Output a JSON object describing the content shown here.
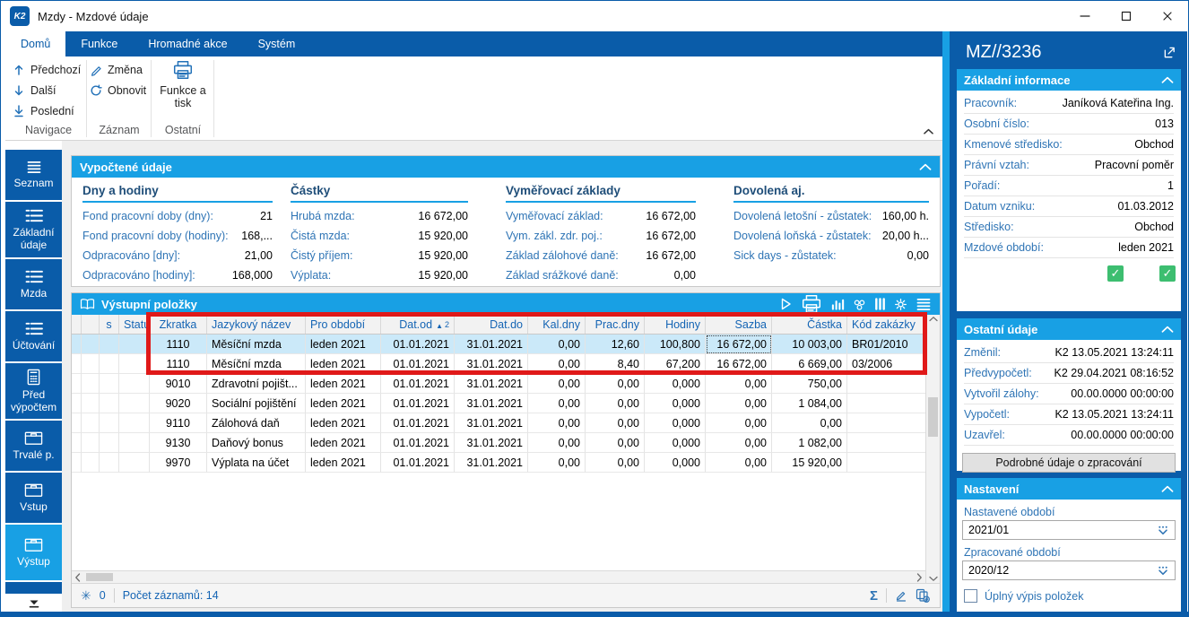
{
  "colors": {
    "dark_blue": "#0A5CA9",
    "bright_blue": "#18A0E4",
    "selection_blue": "#CBE9F9",
    "annotation_red": "#E01919",
    "check_green": "#3DBE70",
    "label_blue": "#2E74B5",
    "heading_navy": "#1F4E79",
    "header_text_blue": "#1464B4"
  },
  "window": {
    "title": "Mzdy - Mzdové údaje",
    "logo_text": "K2",
    "control_icons": [
      "minimize-icon",
      "maximize-icon",
      "close-icon"
    ]
  },
  "ribbon": {
    "tabs": [
      {
        "label": "Domů",
        "active": true
      },
      {
        "label": "Funkce",
        "active": false
      },
      {
        "label": "Hromadné akce",
        "active": false
      },
      {
        "label": "Systém",
        "active": false
      }
    ],
    "groups": [
      {
        "label": "Navigace",
        "buttons": [
          {
            "label": "Předchozí",
            "icon": "arrow-up-icon"
          },
          {
            "label": "Další",
            "icon": "arrow-down-icon"
          },
          {
            "label": "Poslední",
            "icon": "arrow-down-last-icon"
          }
        ]
      },
      {
        "label": "Záznam",
        "buttons": [
          {
            "label": "Změna",
            "icon": "pencil-icon"
          },
          {
            "label": "Obnovit",
            "icon": "refresh-icon"
          }
        ]
      },
      {
        "label": "Ostatní",
        "buttons": [
          {
            "label": "Funkce a tisk",
            "icon": "printer-icon",
            "large": true
          }
        ]
      }
    ]
  },
  "sidebar": {
    "items": [
      {
        "label": "Seznam",
        "icon": "menu-icon",
        "active": false
      },
      {
        "label": "Základní údaje",
        "icon": "list-icon",
        "active": false
      },
      {
        "label": "Mzda",
        "icon": "list-icon",
        "active": false
      },
      {
        "label": "Účtování",
        "icon": "list-icon",
        "active": false
      },
      {
        "label": "Před výpočtem",
        "icon": "calculator-icon",
        "active": false
      },
      {
        "label": "Trvalé p.",
        "icon": "box-icon",
        "active": false
      },
      {
        "label": "Vstup",
        "icon": "box-icon",
        "active": false
      },
      {
        "label": "Výstup",
        "icon": "box-icon",
        "active": true
      }
    ]
  },
  "computed_panel": {
    "title": "Vypočtené údaje",
    "groups": [
      {
        "heading": "Dny a hodiny",
        "rows": [
          {
            "label": "Fond pracovní doby (dny):",
            "value": "21"
          },
          {
            "label": "Fond pracovní doby (hodiny):",
            "value": "168,..."
          },
          {
            "label": "Odpracováno [dny]:",
            "value": "21,00"
          },
          {
            "label": "Odpracováno [hodiny]:",
            "value": "168,000"
          }
        ]
      },
      {
        "heading": "Částky",
        "rows": [
          {
            "label": "Hrubá mzda:",
            "value": "16 672,00"
          },
          {
            "label": "Čistá mzda:",
            "value": "15 920,00"
          },
          {
            "label": "Čistý příjem:",
            "value": "15 920,00"
          },
          {
            "label": "Výplata:",
            "value": "15 920,00"
          }
        ]
      },
      {
        "heading": "Vyměřovací základy",
        "rows": [
          {
            "label": "Vyměřovací základ:",
            "value": "16 672,00"
          },
          {
            "label": "Vym. zákl. zdr. poj.:",
            "value": "16 672,00"
          },
          {
            "label": "Základ zálohové daně:",
            "value": "16 672,00"
          },
          {
            "label": "Základ srážkové daně:",
            "value": "0,00"
          }
        ]
      },
      {
        "heading": "Dovolená aj.",
        "rows": [
          {
            "label": "Dovolená letošní - zůstatek:",
            "value": "160,00 h."
          },
          {
            "label": "Dovolená loňská - zůstatek:",
            "value": "20,00 h..."
          },
          {
            "label": "Sick days - zůstatek:",
            "value": "0,00"
          }
        ]
      }
    ]
  },
  "items_panel": {
    "title": "Výstupní položky",
    "title_icon": "book-icon",
    "toolbar_icons": [
      "play-icon",
      "printer-icon",
      "bar-chart-icon",
      "relations-icon",
      "columns-icon",
      "gear-icon",
      "menu-icon"
    ],
    "columns": [
      "",
      "",
      "s",
      "Status",
      "Zkratka",
      "Jazykový název",
      "Pro období",
      "Dat.od",
      "Dat.do",
      "Kal.dny",
      "Prac.dny",
      "Hodiny",
      "Sazba",
      "Částka",
      "Kód zakázky"
    ],
    "sort": {
      "column": "Dat.od",
      "direction": "asc",
      "order": "2"
    },
    "rows": [
      {
        "selected": true,
        "focus_col": "Sazba",
        "cells": [
          "1110",
          "Měsíční mzda",
          "leden 2021",
          "01.01.2021",
          "31.01.2021",
          "0,00",
          "12,60",
          "100,800",
          "16 672,00",
          "10 003,00",
          "BR01/2010"
        ]
      },
      {
        "selected": false,
        "cells": [
          "1110",
          "Měsíční mzda",
          "leden 2021",
          "01.01.2021",
          "31.01.2021",
          "0,00",
          "8,40",
          "67,200",
          "16 672,00",
          "6 669,00",
          "03/2006"
        ]
      },
      {
        "selected": false,
        "cells": [
          "9010",
          "Zdravotní pojišt...",
          "leden 2021",
          "01.01.2021",
          "31.01.2021",
          "0,00",
          "0,00",
          "0,000",
          "0,00",
          "750,00",
          ""
        ]
      },
      {
        "selected": false,
        "cells": [
          "9020",
          "Sociální pojištění",
          "leden 2021",
          "01.01.2021",
          "31.01.2021",
          "0,00",
          "0,00",
          "0,000",
          "0,00",
          "1 084,00",
          ""
        ]
      },
      {
        "selected": false,
        "cells": [
          "9110",
          "Zálohová daň",
          "leden 2021",
          "01.01.2021",
          "31.01.2021",
          "0,00",
          "0,00",
          "0,000",
          "0,00",
          "0,00",
          ""
        ]
      },
      {
        "selected": false,
        "cells": [
          "9130",
          "Daňový bonus",
          "leden 2021",
          "01.01.2021",
          "31.01.2021",
          "0,00",
          "0,00",
          "0,000",
          "0,00",
          "1 082,00",
          ""
        ]
      },
      {
        "selected": false,
        "cells": [
          "9970",
          "Výplata na účet",
          "leden 2021",
          "01.01.2021",
          "31.01.2021",
          "0,00",
          "0,00",
          "0,000",
          "0,00",
          "15 920,00",
          ""
        ]
      }
    ],
    "status_bar": {
      "filter_icon": "asterisk-icon",
      "filter_count": "0",
      "records_text": "Počet záznamů: 14",
      "icons": [
        "sum-icon",
        "edit-icon",
        "add-copy-icon"
      ]
    }
  },
  "right_panel": {
    "record_id": "MZ//3236",
    "open_icon": "open-external-icon",
    "sections": [
      {
        "title": "Základní informace",
        "rows": [
          {
            "label": "Pracovník:",
            "value": "Janíková Kateřina Ing."
          },
          {
            "label": "Osobní číslo:",
            "value": "013"
          },
          {
            "label": "Kmenové středisko:",
            "value": "Obchod"
          },
          {
            "label": "Právní vztah:",
            "value": "Pracovní poměr"
          },
          {
            "label": "Pořadí:",
            "value": "1"
          },
          {
            "label": "Datum vzniku:",
            "value": "01.03.2012"
          },
          {
            "label": "Středisko:",
            "value": "Obchod"
          },
          {
            "label": "Mzdové období:",
            "value": "leden 2021"
          }
        ],
        "checks": [
          true,
          true
        ]
      },
      {
        "title": "Ostatní údaje",
        "rows": [
          {
            "label": "Změnil:",
            "value": "K2 13.05.2021 13:24:11"
          },
          {
            "label": "Předvypočetl:",
            "value": "K2 29.04.2021 08:16:52"
          },
          {
            "label": "Vytvořil zálohy:",
            "value": "00.00.0000 00:00:00"
          },
          {
            "label": "Vypočetl:",
            "value": "K2 13.05.2021 13:24:11"
          },
          {
            "label": "Uzavřel:",
            "value": "00.00.0000 00:00:00"
          }
        ],
        "button": "Podrobné údaje o zpracování"
      },
      {
        "title": "Nastavení",
        "fields": [
          {
            "label": "Nastavené období",
            "value": "2021/01"
          },
          {
            "label": "Zpracované období",
            "value": "2020/12"
          }
        ],
        "checkbox": {
          "label": "Úplný výpis položek",
          "checked": false
        }
      }
    ]
  },
  "annotation": {
    "shape": "rectangle",
    "color": "#E01919",
    "note": "red highlight around the two 1110 Měsíční mzda rows"
  }
}
